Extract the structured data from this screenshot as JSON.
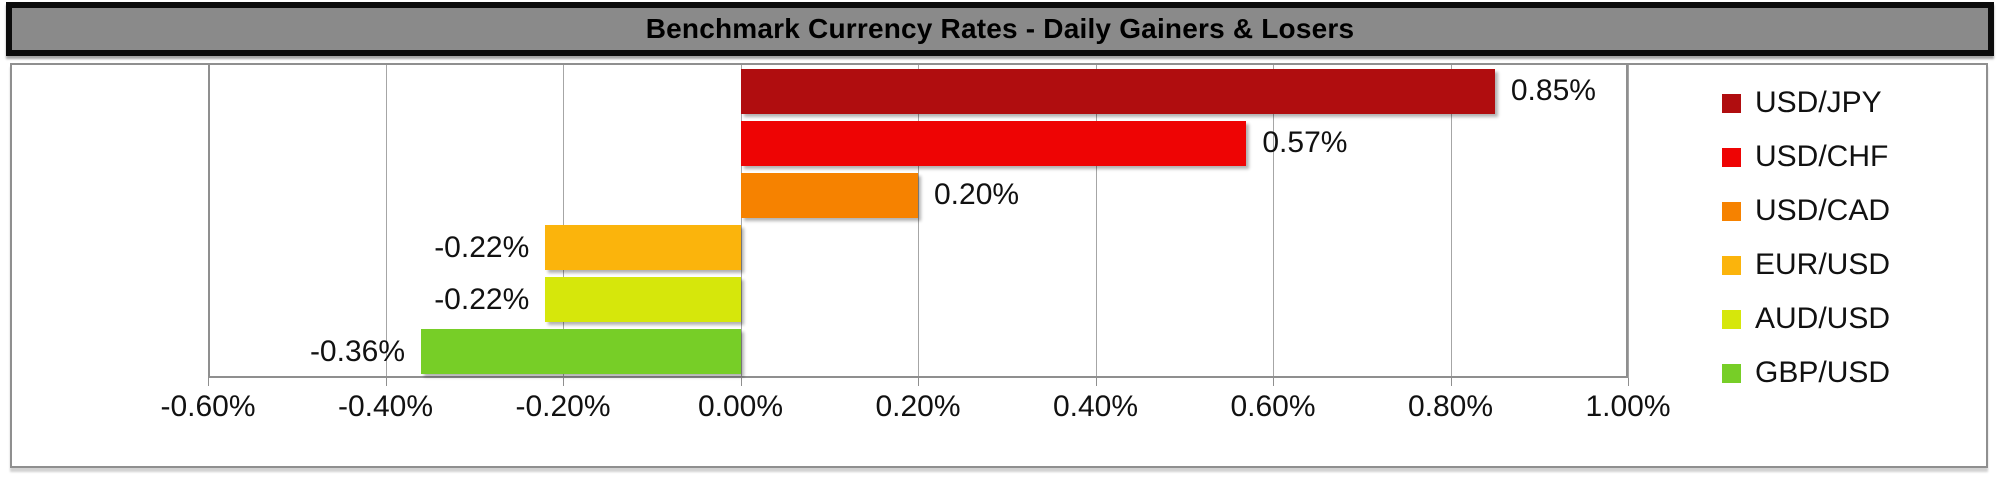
{
  "window": {
    "title": "Benchmark Currency Rates - Daily Gainers & Losers"
  },
  "theme": {
    "title_bar_bg": "#8A8A8A",
    "title_bar_border": "#0C0C0C",
    "frame_border": "#8F8F8F",
    "gridline": "#A6A6A6",
    "text": "#111111"
  },
  "chart_data": {
    "type": "bar",
    "orientation": "horizontal",
    "title": "Benchmark Currency Rates - Daily Gainers & Losers",
    "categories": [
      "USD/JPY",
      "USD/CHF",
      "USD/CAD",
      "EUR/USD",
      "AUD/USD",
      "GBP/USD"
    ],
    "values": [
      0.85,
      0.57,
      0.2,
      -0.22,
      -0.22,
      -0.36
    ],
    "value_labels": [
      "0.85%",
      "0.57%",
      "0.20%",
      "-0.22%",
      "-0.22%",
      "-0.36%"
    ],
    "colors": [
      "#B00D0F",
      "#EE0404",
      "#F68200",
      "#FBB40C",
      "#D6E70B",
      "#77CE27"
    ],
    "xlim": [
      -0.6,
      1.0
    ],
    "x_tick_values": [
      -0.6,
      -0.4,
      -0.2,
      0.0,
      0.2,
      0.4,
      0.6,
      0.8,
      1.0
    ],
    "x_tick_labels": [
      "-0.60%",
      "-0.40%",
      "-0.20%",
      "0.00%",
      "0.20%",
      "0.40%",
      "0.60%",
      "0.80%",
      "1.00%"
    ],
    "grid": true,
    "legend_position": "right",
    "legend": [
      "USD/JPY",
      "USD/CHF",
      "USD/CAD",
      "EUR/USD",
      "AUD/USD",
      "GBP/USD"
    ]
  }
}
